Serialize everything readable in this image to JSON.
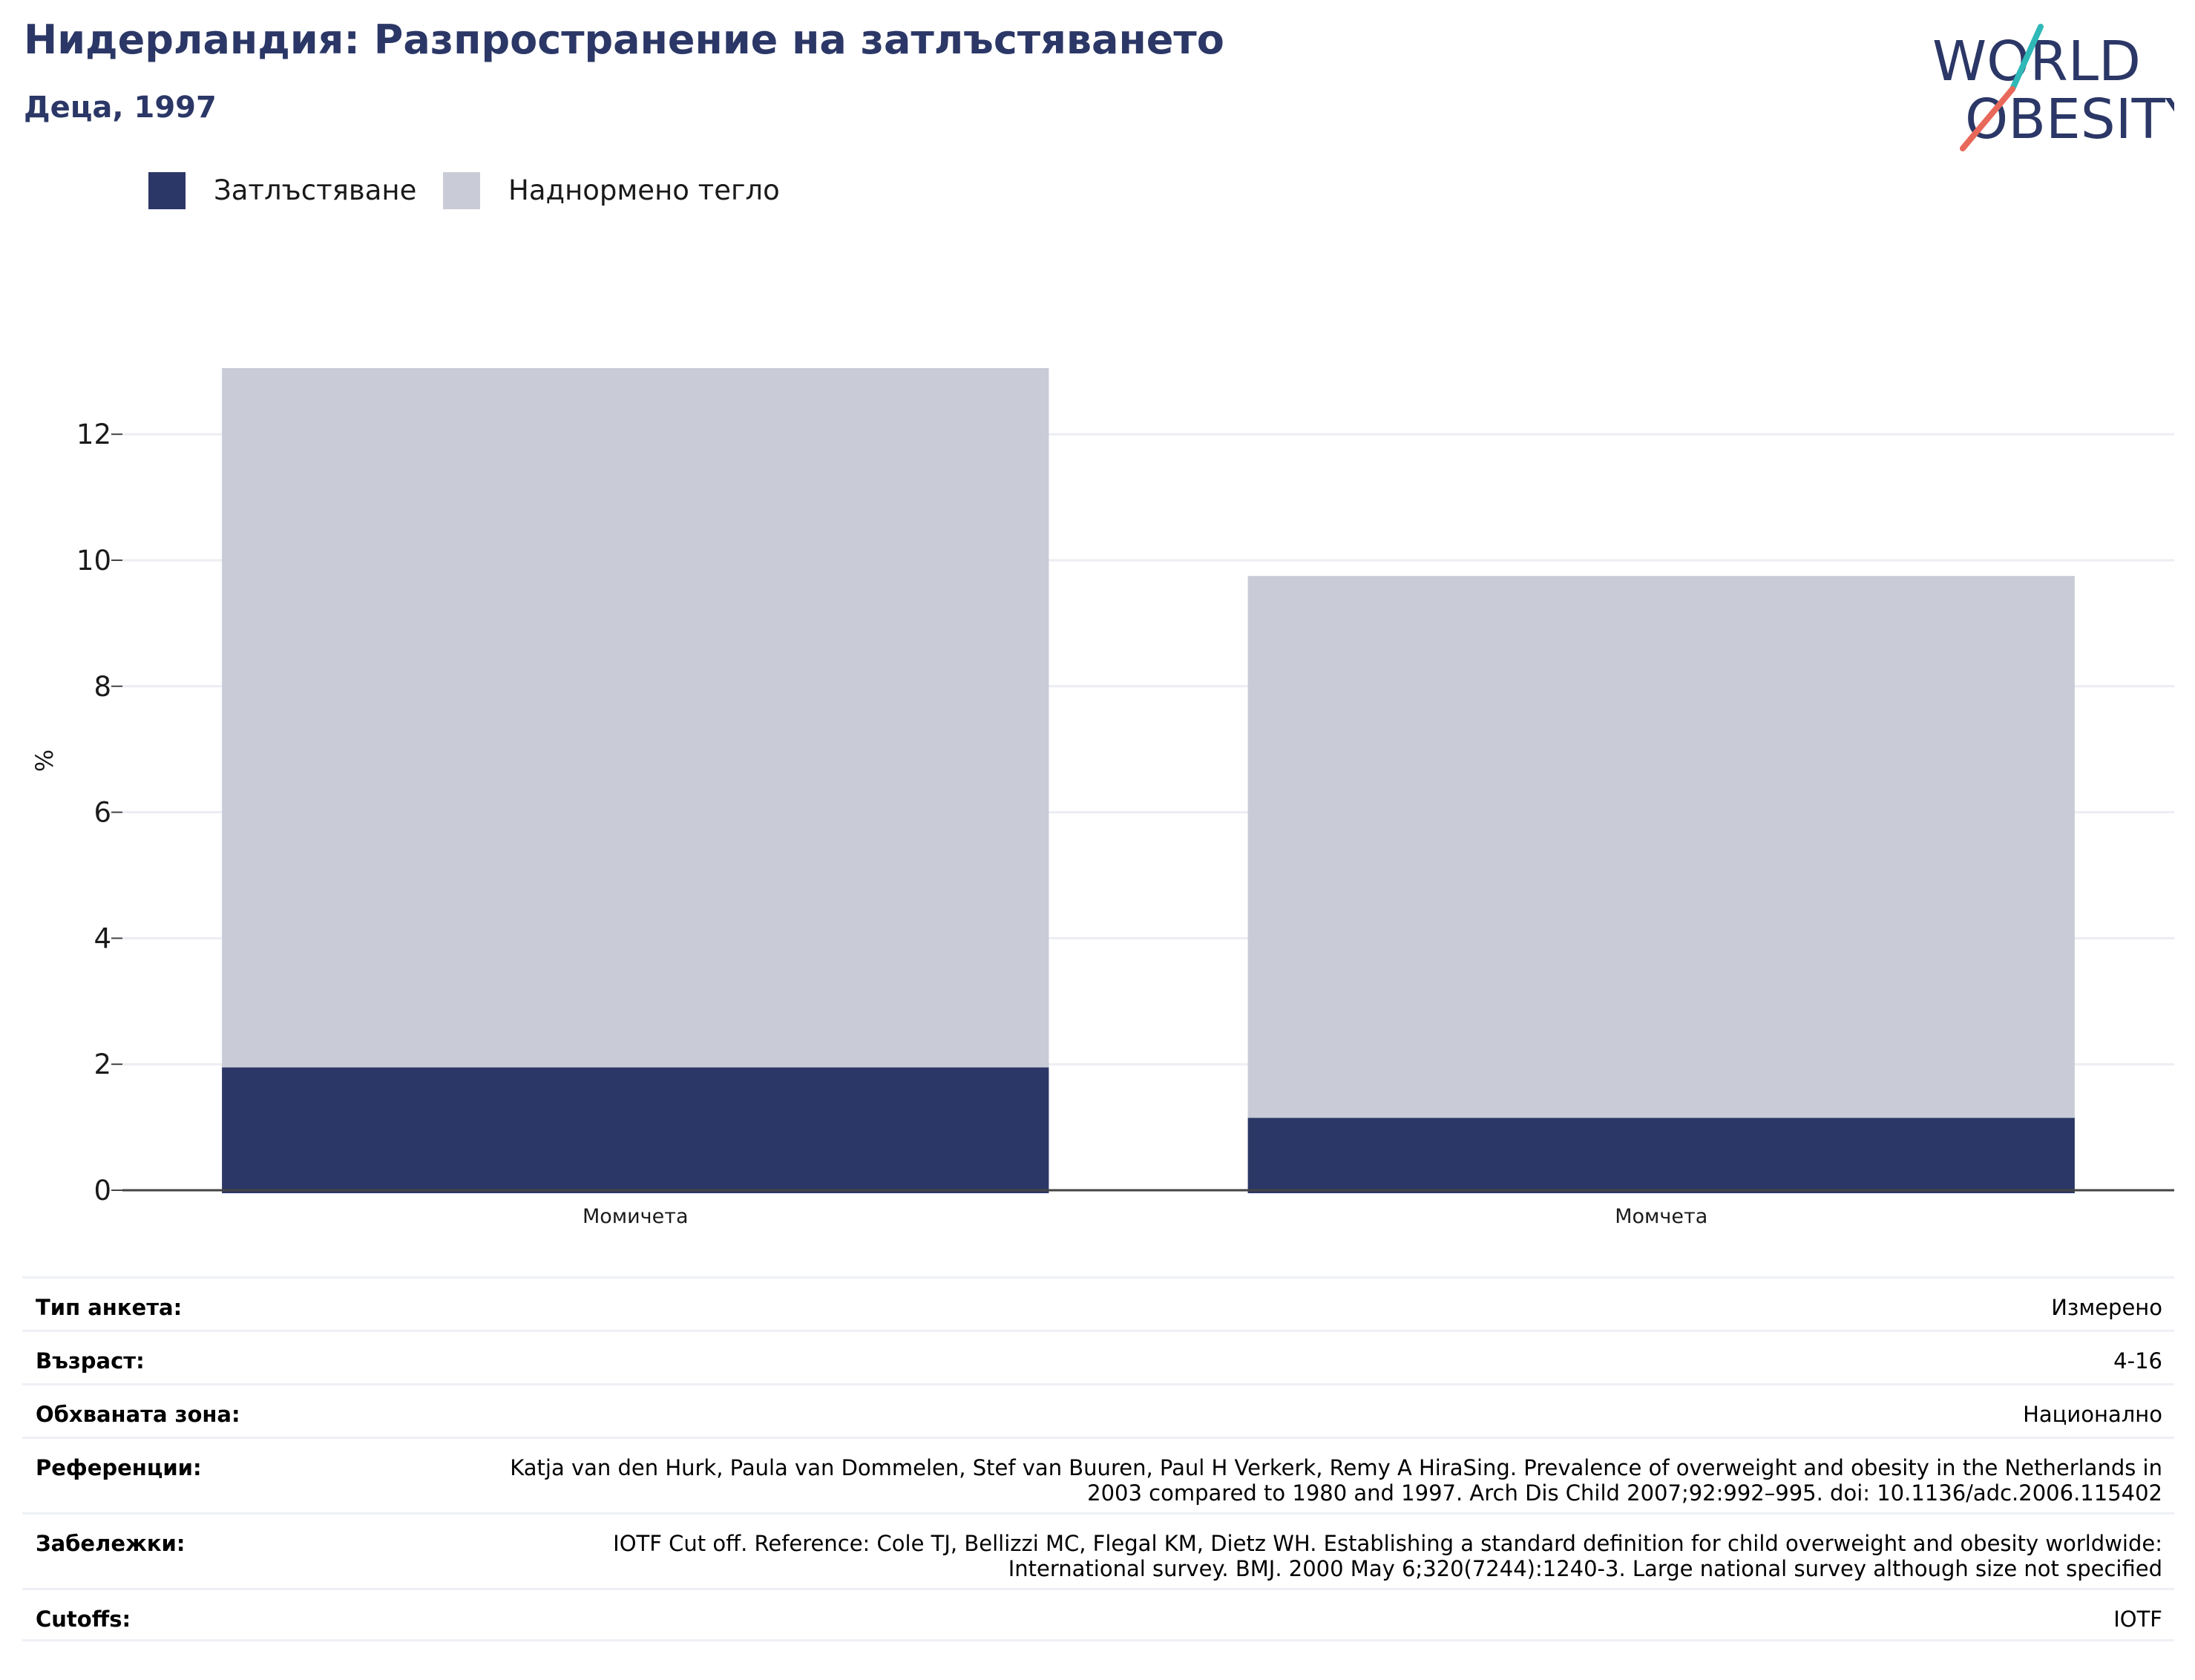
{
  "header": {
    "title": "Нидерландия: Разпространение на затлъстяването",
    "subtitle": "Деца, 1997",
    "logo_text": "WORLD OBESITY"
  },
  "legend": {
    "items": [
      {
        "label": "Затлъстяване",
        "color": "#2b3766"
      },
      {
        "label": "Наднормено тегло",
        "color": "#c9cbd7"
      }
    ]
  },
  "chart_data": {
    "type": "bar",
    "stacked": true,
    "categories": [
      "Момичета",
      "Момчета"
    ],
    "series": [
      {
        "name": "Затлъстяване",
        "values": [
          1.95,
          1.15
        ],
        "color": "#2b3766"
      },
      {
        "name": "Наднормено тегло",
        "values": [
          11.1,
          8.6
        ],
        "color": "#c9cbd7"
      }
    ],
    "xlabel": "",
    "ylabel": "%",
    "ylim": [
      0,
      13.5
    ],
    "yticks": [
      0,
      2,
      4,
      6,
      8,
      10,
      12
    ],
    "grid": true,
    "legend_position": "top-left"
  },
  "info": {
    "rows": [
      {
        "key": "Тип анкета:",
        "value": "Измерено"
      },
      {
        "key": "Възраст:",
        "value": "4-16"
      },
      {
        "key": "Обхваната зона:",
        "value": "Национално"
      },
      {
        "key": "Референции:",
        "value": "Katja van den Hurk, Paula van Dommelen, Stef van Buuren, Paul H Verkerk, Remy A HiraSing. Prevalence of overweight and obesity in the Netherlands in 2003 compared to 1980 and 1997. Arch Dis Child 2007;92:992–995. doi: 10.1136/adc.2006.115402"
      },
      {
        "key": "Забележки:",
        "value": "IOTF Cut off. Reference: Cole TJ, Bellizzi MC, Flegal KM, Dietz WH. Establishing a standard definition for child overweight and obesity worldwide: International survey. BMJ. 2000 May 6;320(7244):1240-3. Large national survey although size not specified"
      },
      {
        "key": "Cutoffs:",
        "value": "IOTF"
      }
    ]
  }
}
